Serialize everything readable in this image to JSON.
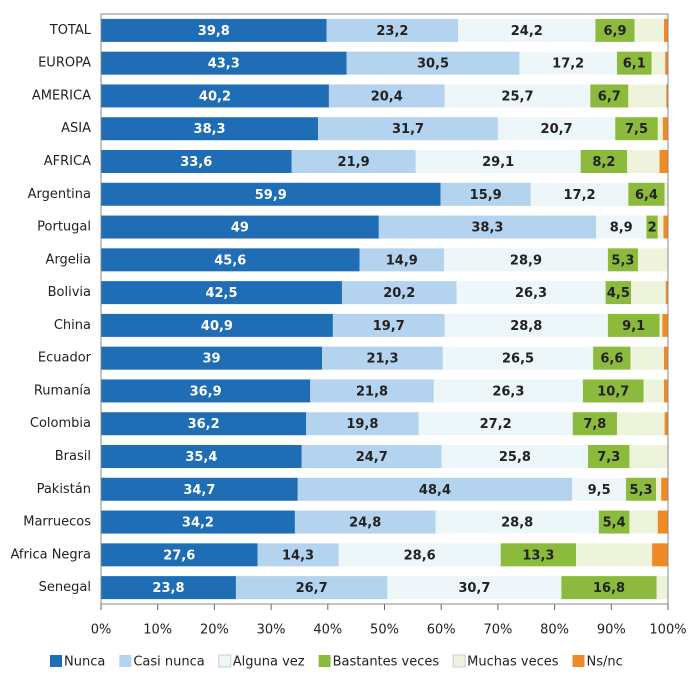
{
  "chart_data": {
    "type": "stacked-bar-horizontal",
    "categories": [
      "TOTAL",
      "EUROPA",
      "AMERICA",
      "ASIA",
      "AFRICA",
      "Argentina",
      "Portugal",
      "Argelia",
      "Bolivia",
      "China",
      "Ecuador",
      "Rumanía",
      "Colombia",
      "Brasil",
      "Pakistán",
      "Marruecos",
      "Africa Negra",
      "Senegal"
    ],
    "series": [
      {
        "name": "Nunca",
        "color": "#1f6db4",
        "values": [
          39.8,
          43.3,
          40.2,
          38.3,
          33.6,
          59.9,
          49,
          45.6,
          42.5,
          40.9,
          39,
          36.9,
          36.2,
          35.4,
          34.7,
          34.2,
          27.6,
          23.8
        ],
        "value_labels": [
          "39,8",
          "43,3",
          "40,2",
          "38,3",
          "33,6",
          "59,9",
          "49",
          "45,6",
          "42,5",
          "40,9",
          "39",
          "36,9",
          "36,2",
          "35,4",
          "34,7",
          "34,2",
          "27,6",
          "23,8"
        ]
      },
      {
        "name": "Casi nunca",
        "color": "#b4d3ee",
        "values": [
          23.2,
          30.5,
          20.4,
          31.7,
          21.9,
          15.9,
          38.3,
          14.9,
          20.2,
          19.7,
          21.3,
          21.8,
          19.8,
          24.7,
          48.4,
          24.8,
          14.3,
          26.7
        ],
        "value_labels": [
          "23,2",
          "30,5",
          "20,4",
          "31,7",
          "21,9",
          "15,9",
          "38,3",
          "14,9",
          "20,2",
          "19,7",
          "21,3",
          "21,8",
          "19,8",
          "24,7",
          "48,4",
          "24,8",
          "14,3",
          "26,7"
        ]
      },
      {
        "name": "Alguna vez",
        "color": "#edf6f9",
        "values": [
          24.2,
          17.2,
          25.7,
          20.7,
          29.1,
          17.2,
          8.9,
          28.9,
          26.3,
          28.8,
          26.5,
          26.3,
          27.2,
          25.8,
          9.5,
          28.8,
          28.6,
          30.7
        ],
        "value_labels": [
          "24,2",
          "17,2",
          "25,7",
          "20,7",
          "29,1",
          "17,2",
          "8,9",
          "28,9",
          "26,3",
          "28,8",
          "26,5",
          "26,3",
          "27,2",
          "25,8",
          "9,5",
          "28,8",
          "28,6",
          "30,7"
        ]
      },
      {
        "name": "Bastantes veces",
        "color": "#8cba3c",
        "values": [
          6.9,
          6.1,
          6.7,
          7.5,
          8.2,
          6.4,
          2,
          5.3,
          4.5,
          9.1,
          6.6,
          10.7,
          7.8,
          7.3,
          5.3,
          5.4,
          13.3,
          16.8
        ],
        "value_labels": [
          "6,9",
          "6,1",
          "6,7",
          "7,5",
          "8,2",
          "6,4",
          "2",
          "5,3",
          "4,5",
          "9,1",
          "6,6",
          "10,7",
          "7,8",
          "7,3",
          "5,3",
          "5,4",
          "13,3",
          "16,8"
        ]
      },
      {
        "name": "Muchas veces",
        "color": "#eef4dc",
        "values": [
          5.2,
          2.4,
          6.7,
          0.9,
          5.7,
          0.6,
          1.0,
          5.3,
          6.1,
          0.5,
          5.9,
          3.6,
          8.4,
          6.8,
          0.9,
          5.0,
          13.4,
          2.0
        ]
      },
      {
        "name": "Ns/nc",
        "color": "#f08a24",
        "values": [
          0.7,
          0.5,
          0.3,
          0.9,
          1.5,
          0,
          0.8,
          0,
          0.4,
          1.0,
          0.7,
          0.7,
          0.6,
          0,
          1.2,
          1.8,
          2.8,
          0
        ]
      }
    ],
    "xlim": [
      0,
      100
    ],
    "xticks": [
      {
        "value": 0,
        "label": "0%"
      },
      {
        "value": 10,
        "label": "10%"
      },
      {
        "value": 20,
        "label": "20%"
      },
      {
        "value": 30,
        "label": "30%"
      },
      {
        "value": 40,
        "label": "40%"
      },
      {
        "value": 50,
        "label": "50%"
      },
      {
        "value": 60,
        "label": "60%"
      },
      {
        "value": 70,
        "label": "70%"
      },
      {
        "value": 80,
        "label": "80%"
      },
      {
        "value": 90,
        "label": "90%"
      },
      {
        "value": 100,
        "label": "100%"
      }
    ]
  }
}
